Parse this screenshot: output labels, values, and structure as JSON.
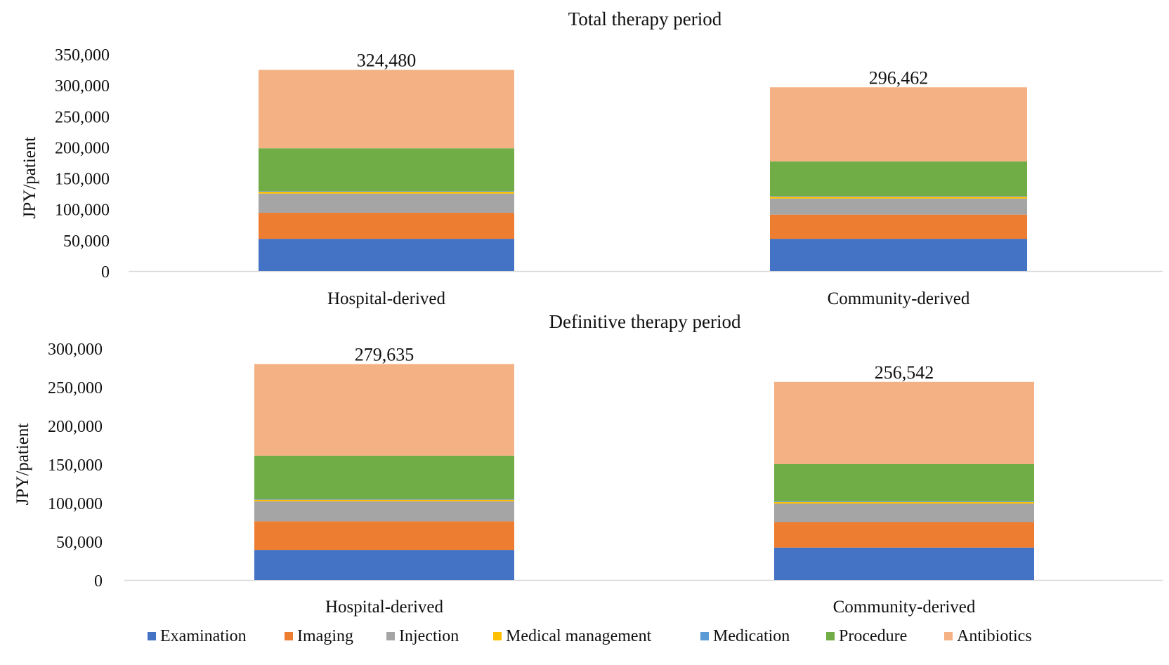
{
  "chart_data": [
    {
      "type": "bar",
      "stacked": true,
      "title": "Total therapy period",
      "ylabel": "JPY/patient",
      "xlabel": "",
      "categories": [
        "Hospital-derived",
        "Community-derived"
      ],
      "ylim": [
        0,
        350000
      ],
      "yticks": [
        0,
        50000,
        100000,
        150000,
        200000,
        250000,
        300000,
        350000
      ],
      "tick_labels": [
        "0",
        "50,000",
        "100,000",
        "150,000",
        "200,000",
        "250,000",
        "300,000",
        "350,000"
      ],
      "totals": [
        324480,
        296462
      ],
      "total_labels": [
        "324,480",
        "296,462"
      ],
      "grid": false,
      "series": [
        {
          "name": "Examination",
          "values": [
            52000,
            52000
          ]
        },
        {
          "name": "Imaging",
          "values": [
            42000,
            39000
          ]
        },
        {
          "name": "Injection",
          "values": [
            31000,
            26000
          ]
        },
        {
          "name": "Medical management",
          "values": [
            3000,
            3000
          ]
        },
        {
          "name": "Medication",
          "values": [
            1000,
            1000
          ]
        },
        {
          "name": "Procedure",
          "values": [
            69000,
            56000
          ]
        },
        {
          "name": "Antibiotics",
          "values": [
            126480,
            119462
          ]
        }
      ]
    },
    {
      "type": "bar",
      "stacked": true,
      "title": "Definitive therapy period",
      "ylabel": "JPY/patient",
      "xlabel": "",
      "categories": [
        "Hospital-derived",
        "Community-derived"
      ],
      "ylim": [
        0,
        300000
      ],
      "yticks": [
        0,
        50000,
        100000,
        150000,
        200000,
        250000,
        300000
      ],
      "tick_labels": [
        "0",
        "50,000",
        "100,000",
        "150,000",
        "200,000",
        "250,000",
        "300,000"
      ],
      "totals": [
        279635,
        256542
      ],
      "total_labels": [
        "279,635",
        "256,542"
      ],
      "grid": false,
      "series": [
        {
          "name": "Examination",
          "values": [
            39000,
            42000
          ]
        },
        {
          "name": "Imaging",
          "values": [
            37000,
            33000
          ]
        },
        {
          "name": "Injection",
          "values": [
            26000,
            24000
          ]
        },
        {
          "name": "Medical management",
          "values": [
            2000,
            2000
          ]
        },
        {
          "name": "Medication",
          "values": [
            1000,
            1000
          ]
        },
        {
          "name": "Procedure",
          "values": [
            56000,
            48000
          ]
        },
        {
          "name": "Antibiotics",
          "values": [
            118635,
            106542
          ]
        }
      ]
    }
  ],
  "legend": {
    "position": "bottom",
    "items": [
      {
        "name": "Examination",
        "color": "#4472c4"
      },
      {
        "name": "Imaging",
        "color": "#ed7d31"
      },
      {
        "name": "Injection",
        "color": "#a5a5a5"
      },
      {
        "name": "Medical management",
        "color": "#ffc000"
      },
      {
        "name": "Medication",
        "color": "#5b9bd5"
      },
      {
        "name": "Procedure",
        "color": "#70ad47"
      },
      {
        "name": "Antibiotics",
        "color": "#f4b183"
      }
    ]
  }
}
